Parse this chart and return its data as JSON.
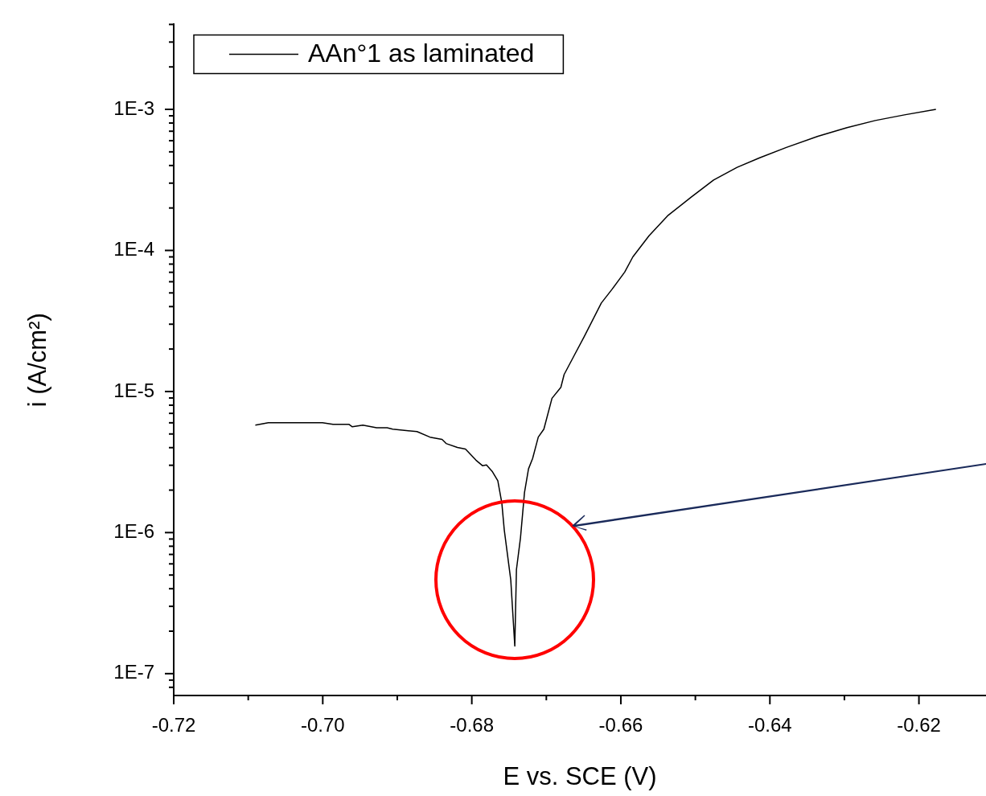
{
  "chart_data": {
    "type": "line",
    "xlabel": "E vs. SCE (V)",
    "ylabel": "i (A/cm²)",
    "log": "y",
    "grid": false,
    "legend": "top left",
    "marker": "none",
    "line_style": "solid",
    "xlim": [
      -0.72,
      -0.611
    ],
    "xticks": [
      -0.72,
      {
        "value": -0.71,
        "label": null
      },
      {
        "value": -0.7,
        "label": "-0.70"
      },
      {
        "value": -0.69,
        "label": null
      },
      -0.68,
      {
        "value": -0.67,
        "label": null
      },
      -0.66,
      {
        "value": -0.65,
        "label": null
      },
      -0.64,
      {
        "value": -0.63,
        "label": null
      },
      -0.62
    ],
    "ylim": [
      7e-08,
      0.004
    ],
    "yticks": [
      {
        "value": 8e-08,
        "label": null
      },
      {
        "value": 9e-08,
        "label": null
      },
      {
        "value": 1e-07,
        "label": "1E-7"
      },
      {
        "value": 2e-07,
        "label": null
      },
      {
        "value": 3e-07,
        "label": null
      },
      {
        "value": 4e-07,
        "label": null
      },
      {
        "value": 5e-07,
        "label": null
      },
      {
        "value": 6e-07,
        "label": null
      },
      {
        "value": 7e-07,
        "label": null
      },
      {
        "value": 8e-07,
        "label": null
      },
      {
        "value": 9e-07,
        "label": null
      },
      {
        "value": 1e-06,
        "label": "1E-6"
      },
      {
        "value": 2e-06,
        "label": null
      },
      {
        "value": 3e-06,
        "label": null
      },
      {
        "value": 4e-06,
        "label": null
      },
      {
        "value": 5e-06,
        "label": null
      },
      {
        "value": 6e-06,
        "label": null
      },
      {
        "value": 7e-06,
        "label": null
      },
      {
        "value": 8e-06,
        "label": null
      },
      {
        "value": 9e-06,
        "label": null
      },
      {
        "value": 1e-05,
        "label": "1E-5"
      },
      {
        "value": 2e-05,
        "label": null
      },
      {
        "value": 3e-05,
        "label": null
      },
      {
        "value": 4e-05,
        "label": null
      },
      {
        "value": 5e-05,
        "label": null
      },
      {
        "value": 6e-05,
        "label": null
      },
      {
        "value": 7e-05,
        "label": null
      },
      {
        "value": 8e-05,
        "label": null
      },
      {
        "value": 9e-05,
        "label": null
      },
      {
        "value": 0.0001,
        "label": "1E-4"
      },
      {
        "value": 0.0002,
        "label": null
      },
      {
        "value": 0.0003,
        "label": null
      },
      {
        "value": 0.0004,
        "label": null
      },
      {
        "value": 0.0005,
        "label": null
      },
      {
        "value": 0.0006,
        "label": null
      },
      {
        "value": 0.0007,
        "label": null
      },
      {
        "value": 0.0008,
        "label": null
      },
      {
        "value": 0.0009,
        "label": null
      },
      {
        "value": 0.001,
        "label": "1E-3"
      },
      {
        "value": 0.002,
        "label": null
      },
      {
        "value": 0.003,
        "label": null
      },
      {
        "value": 0.004,
        "label": null
      }
    ],
    "series": [
      {
        "name": "AAn°1 as laminated",
        "color": "#000000",
        "x": [
          -0.70905,
          -0.70731,
          -0.70362,
          -0.70004,
          -0.69863,
          -0.69647,
          -0.69603,
          -0.69462,
          -0.69278,
          -0.69137,
          -0.69061,
          -0.68735,
          -0.68562,
          -0.68399,
          -0.68345,
          -0.68193,
          -0.68085,
          -0.67944,
          -0.67857,
          -0.67803,
          -0.67727,
          -0.67651,
          -0.67597,
          -0.67564,
          -0.67477,
          -0.67423,
          -0.67401,
          -0.67347,
          -0.67293,
          -0.67239,
          -0.67184,
          -0.67108,
          -0.67033,
          -0.66924,
          -0.66805,
          -0.66761,
          -0.66631,
          -0.6649,
          -0.66262,
          -0.66121,
          -0.65948,
          -0.65839,
          -0.65622,
          -0.65373,
          -0.65059,
          -0.64755,
          -0.6444,
          -0.64137,
          -0.63779,
          -0.63356,
          -0.62965,
          -0.62586,
          -0.62195,
          -0.61772
        ],
        "values": [
          5.77e-06,
          6e-06,
          6e-06,
          6e-06,
          5.85e-06,
          5.85e-06,
          5.62e-06,
          5.77e-06,
          5.54e-06,
          5.54e-06,
          5.41e-06,
          5.2e-06,
          4.75e-06,
          4.57e-06,
          4.28e-06,
          4.01e-06,
          3.91e-06,
          3.26e-06,
          2.98e-06,
          3.02e-06,
          2.72e-06,
          2.33e-06,
          1.62e-06,
          1.04e-06,
          4.61e-07,
          1.57e-07,
          5.46e-07,
          9.16e-07,
          1.92e-06,
          2.83e-06,
          3.35e-06,
          4.75e-06,
          5.41e-06,
          8.95e-06,
          1.07e-05,
          1.32e-05,
          1.78e-05,
          2.46e-05,
          4.24e-05,
          5.28e-05,
          7.03e-05,
          9e-05,
          0.000127,
          0.000176,
          0.000238,
          0.000316,
          0.000388,
          0.000454,
          0.000537,
          0.000644,
          0.000743,
          0.000834,
          0.000914,
          0.001
        ]
      }
    ]
  }
}
